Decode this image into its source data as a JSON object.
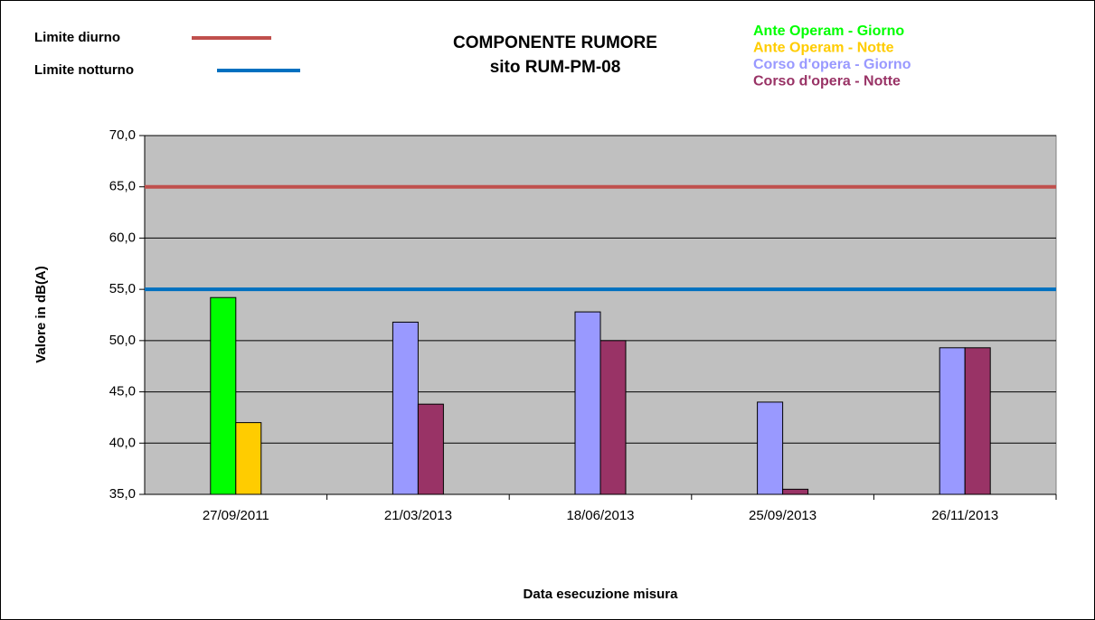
{
  "chart_data": {
    "type": "bar",
    "title": "COMPONENTE RUMORE",
    "subtitle": "sito RUM-PM-08",
    "xlabel": "Data esecuzione misura",
    "ylabel": "Valore in dB(A)",
    "categories": [
      "27/09/2011",
      "21/03/2013",
      "18/06/2013",
      "25/09/2013",
      "26/11/2013"
    ],
    "series": [
      {
        "name": "Ante Operam - Giorno",
        "color": "#00ff00",
        "values": [
          54.2,
          null,
          null,
          null,
          null
        ]
      },
      {
        "name": "Ante Operam - Notte",
        "color": "#ffcc00",
        "values": [
          42.0,
          null,
          null,
          null,
          null
        ]
      },
      {
        "name": "Corso d'opera - Giorno",
        "color": "#9999ff",
        "values": [
          null,
          51.8,
          52.8,
          44.0,
          49.3
        ]
      },
      {
        "name": "Corso d'opera - Notte",
        "color": "#993366",
        "values": [
          null,
          43.8,
          50.0,
          35.5,
          49.3
        ]
      }
    ],
    "limits": [
      {
        "name": "Limite diurno",
        "value": 65,
        "color": "#c0504d"
      },
      {
        "name": "Limite notturno",
        "value": 55,
        "color": "#0070c0"
      }
    ],
    "ylim": [
      35,
      70
    ],
    "yticks": [
      {
        "value": 35,
        "label": "35,0"
      },
      {
        "value": 40,
        "label": "40,0"
      },
      {
        "value": 45,
        "label": "45,0"
      },
      {
        "value": 50,
        "label": "50,0"
      },
      {
        "value": 55,
        "label": "55,0"
      },
      {
        "value": 60,
        "label": "60,0"
      },
      {
        "value": 65,
        "label": "65,0"
      },
      {
        "value": 70,
        "label": "70,0"
      }
    ],
    "grid": true,
    "plot_background": "#c0c0c0"
  }
}
